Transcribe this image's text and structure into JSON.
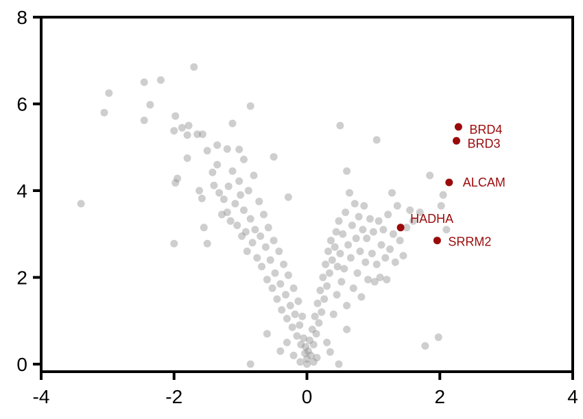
{
  "chart_data": {
    "type": "scatter",
    "title": "",
    "xlabel": "",
    "ylabel": "",
    "xlim": [
      -4,
      4
    ],
    "ylim": [
      0,
      8
    ],
    "x_ticks": [
      -4,
      -2,
      0,
      2,
      4
    ],
    "y_ticks": [
      0,
      2,
      4,
      6,
      8
    ],
    "x_tick_labels": [
      "-4",
      "-2",
      "0",
      "2",
      "4"
    ],
    "y_tick_labels": [
      "0",
      "2",
      "4",
      "6",
      "8"
    ],
    "grid": false,
    "legend": "none",
    "colors": {
      "background_points": "#8a8a8a",
      "highlighted": "#9b0a0a",
      "axis": "#000000"
    },
    "highlighted_points": [
      {
        "label": "BRD4",
        "x": 2.28,
        "y": 5.47
      },
      {
        "label": "BRD3",
        "x": 2.25,
        "y": 5.15
      },
      {
        "label": "ALCAM",
        "x": 2.14,
        "y": 4.19
      },
      {
        "label": "HADHA",
        "x": 1.41,
        "y": 3.15
      },
      {
        "label": "SRRM2",
        "x": 1.96,
        "y": 2.85
      }
    ],
    "background_points": [
      [
        -3.4,
        3.7
      ],
      [
        -3.05,
        5.8
      ],
      [
        -2.98,
        6.25
      ],
      [
        -2.45,
        6.5
      ],
      [
        -2.45,
        5.62
      ],
      [
        -2.36,
        5.98
      ],
      [
        -2.2,
        6.55
      ],
      [
        -1.7,
        6.85
      ],
      [
        -2.0,
        5.38
      ],
      [
        -1.98,
        5.72
      ],
      [
        -1.88,
        5.45
      ],
      [
        -1.78,
        5.5
      ],
      [
        -1.8,
        5.28
      ],
      [
        -1.65,
        5.3
      ],
      [
        -1.57,
        5.3
      ],
      [
        -1.5,
        4.92
      ],
      [
        -1.35,
        5.05
      ],
      [
        -1.2,
        4.96
      ],
      [
        -1.12,
        5.55
      ],
      [
        -1.02,
        4.95
      ],
      [
        -0.95,
        4.72
      ],
      [
        -0.85,
        5.95
      ],
      [
        -1.8,
        4.75
      ],
      [
        -1.98,
        4.18
      ],
      [
        -2.0,
        2.78
      ],
      [
        -1.95,
        4.28
      ],
      [
        -1.62,
        4.0
      ],
      [
        -1.58,
        3.82
      ],
      [
        -1.55,
        3.15
      ],
      [
        -1.5,
        2.78
      ],
      [
        -1.42,
        4.42
      ],
      [
        -1.4,
        4.12
      ],
      [
        -1.35,
        4.6
      ],
      [
        -1.32,
        3.95
      ],
      [
        -1.28,
        3.45
      ],
      [
        -1.25,
        3.8
      ],
      [
        -1.2,
        3.5
      ],
      [
        -1.18,
        4.1
      ],
      [
        -1.15,
        3.3
      ],
      [
        -1.12,
        4.45
      ],
      [
        -1.08,
        3.7
      ],
      [
        -1.05,
        3.2
      ],
      [
        -1.02,
        4.22
      ],
      [
        -1.0,
        3.9
      ],
      [
        -0.98,
        2.95
      ],
      [
        -0.95,
        3.55
      ],
      [
        -0.92,
        3.05
      ],
      [
        -0.9,
        2.6
      ],
      [
        -0.88,
        4.0
      ],
      [
        -0.85,
        3.35
      ],
      [
        -0.82,
        2.8
      ],
      [
        -0.8,
        4.35
      ],
      [
        -0.78,
        3.1
      ],
      [
        -0.75,
        2.45
      ],
      [
        -0.72,
        3.75
      ],
      [
        -0.7,
        2.95
      ],
      [
        -0.68,
        2.25
      ],
      [
        -0.65,
        3.45
      ],
      [
        -0.62,
        2.7
      ],
      [
        -0.6,
        1.95
      ],
      [
        -0.58,
        3.15
      ],
      [
        -0.55,
        2.4
      ],
      [
        -0.52,
        1.75
      ],
      [
        -0.5,
        4.78
      ],
      [
        -0.5,
        2.85
      ],
      [
        -0.48,
        2.1
      ],
      [
        -0.45,
        1.5
      ],
      [
        -0.42,
        2.6
      ],
      [
        -0.4,
        1.85
      ],
      [
        -0.38,
        1.25
      ],
      [
        -0.35,
        2.3
      ],
      [
        -0.32,
        1.6
      ],
      [
        -0.3,
        1.05
      ],
      [
        -0.28,
        3.85
      ],
      [
        -0.28,
        2.05
      ],
      [
        -0.25,
        1.35
      ],
      [
        -0.22,
        0.85
      ],
      [
        -0.2,
        1.75
      ],
      [
        -0.18,
        1.15
      ],
      [
        -0.15,
        0.65
      ],
      [
        -0.13,
        1.45
      ],
      [
        -0.11,
        0.9
      ],
      [
        -0.09,
        0.45
      ],
      [
        -0.07,
        1.1
      ],
      [
        -0.05,
        0.6
      ],
      [
        -0.03,
        0.25
      ],
      [
        -0.02,
        0.4
      ],
      [
        0.0,
        0.12
      ],
      [
        0.02,
        0.3
      ],
      [
        0.04,
        0.55
      ],
      [
        0.06,
        0.2
      ],
      [
        0.08,
        0.8
      ],
      [
        0.1,
        0.45
      ],
      [
        0.12,
        1.1
      ],
      [
        0.14,
        0.7
      ],
      [
        0.16,
        1.4
      ],
      [
        0.18,
        0.95
      ],
      [
        0.2,
        1.7
      ],
      [
        0.22,
        1.2
      ],
      [
        0.24,
        2.0
      ],
      [
        0.26,
        1.5
      ],
      [
        0.28,
        2.3
      ],
      [
        0.3,
        1.8
      ],
      [
        0.32,
        2.6
      ],
      [
        0.34,
        2.1
      ],
      [
        0.36,
        2.85
      ],
      [
        0.38,
        2.4
      ],
      [
        0.4,
        1.15
      ],
      [
        0.42,
        2.7
      ],
      [
        0.44,
        3.05
      ],
      [
        0.45,
        1.6
      ],
      [
        0.46,
        2.25
      ],
      [
        0.48,
        3.3
      ],
      [
        0.5,
        5.5
      ],
      [
        0.5,
        2.55
      ],
      [
        0.52,
        1.9
      ],
      [
        0.54,
        3.0
      ],
      [
        0.56,
        2.2
      ],
      [
        0.58,
        3.5
      ],
      [
        0.6,
        4.45
      ],
      [
        0.6,
        1.35
      ],
      [
        0.62,
        2.75
      ],
      [
        0.64,
        3.95
      ],
      [
        0.66,
        2.45
      ],
      [
        0.68,
        3.2
      ],
      [
        0.7,
        1.75
      ],
      [
        0.72,
        3.7
      ],
      [
        0.74,
        2.9
      ],
      [
        0.76,
        2.1
      ],
      [
        0.78,
        3.4
      ],
      [
        0.8,
        2.6
      ],
      [
        0.82,
        1.55
      ],
      [
        0.84,
        3.1
      ],
      [
        0.86,
        3.65
      ],
      [
        0.88,
        2.35
      ],
      [
        0.9,
        2.9
      ],
      [
        0.92,
        1.95
      ],
      [
        0.95,
        3.35
      ],
      [
        0.98,
        2.55
      ],
      [
        1.0,
        3.05
      ],
      [
        1.02,
        1.9
      ],
      [
        1.05,
        5.17
      ],
      [
        1.05,
        2.3
      ],
      [
        1.08,
        3.3
      ],
      [
        1.1,
        2.0
      ],
      [
        1.12,
        2.75
      ],
      [
        1.15,
        3.1
      ],
      [
        1.18,
        2.45
      ],
      [
        1.2,
        1.95
      ],
      [
        1.22,
        3.45
      ],
      [
        1.25,
        2.65
      ],
      [
        1.28,
        3.95
      ],
      [
        1.3,
        3.0
      ],
      [
        1.33,
        2.35
      ],
      [
        1.36,
        3.65
      ],
      [
        1.4,
        2.85
      ],
      [
        1.45,
        2.5
      ],
      [
        1.5,
        3.15
      ],
      [
        1.55,
        3.55
      ],
      [
        1.6,
        3.3
      ],
      [
        1.7,
        3.5
      ],
      [
        1.78,
        0.42
      ],
      [
        1.85,
        4.35
      ],
      [
        1.98,
        0.62
      ],
      [
        2.02,
        3.65
      ],
      [
        2.1,
        3.1
      ],
      [
        2.05,
        3.9
      ],
      [
        -0.85,
        0.0
      ],
      [
        0.48,
        0.0
      ],
      [
        0.0,
        0.0
      ],
      [
        -0.2,
        0.2
      ],
      [
        0.15,
        0.15
      ],
      [
        -0.1,
        0.05
      ],
      [
        0.1,
        0.05
      ],
      [
        -0.3,
        0.5
      ],
      [
        0.3,
        0.5
      ],
      [
        -0.6,
        0.7
      ],
      [
        0.6,
        0.8
      ],
      [
        -0.4,
        0.3
      ],
      [
        0.35,
        0.28
      ]
    ]
  }
}
